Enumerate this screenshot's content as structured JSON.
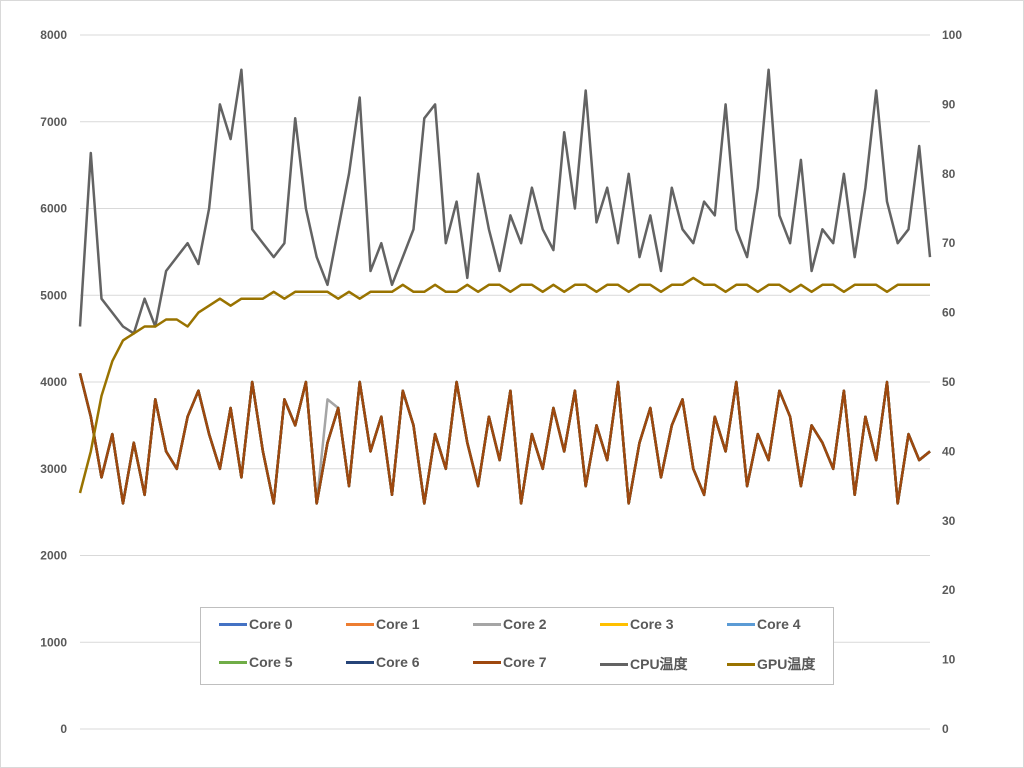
{
  "chart_data": {
    "type": "line",
    "title": "",
    "xlabel": "",
    "ylabel": "",
    "y_left": {
      "min": 0,
      "max": 8000,
      "ticks": [
        "0",
        "1000",
        "2000",
        "3000",
        "4000",
        "5000",
        "6000",
        "7000",
        "8000"
      ]
    },
    "y_right": {
      "min": 0,
      "max": 100,
      "ticks": [
        "0",
        "10",
        "20",
        "30",
        "40",
        "50",
        "60",
        "70",
        "80",
        "90",
        "100"
      ]
    },
    "grid": true,
    "legend_position": "bottom",
    "sample_count": 80,
    "series": [
      {
        "name": "Core 0",
        "axis": "left",
        "color": "#4472c4",
        "values": [
          4100,
          3600,
          2900,
          3400,
          2600,
          3300,
          2700,
          3800,
          3200,
          3000,
          3600,
          3900,
          3400,
          3000,
          3700,
          2900,
          4000,
          3200,
          2600,
          3800,
          3500,
          4000,
          2600,
          3300,
          3700,
          2800,
          4000,
          3200,
          3600,
          2700,
          3900,
          3500,
          2600,
          3400,
          3000,
          4000,
          3300,
          2800,
          3600,
          3100,
          3900,
          2600,
          3400,
          3000,
          3700,
          3200,
          3900,
          2800,
          3500,
          3100,
          4000,
          2600,
          3300,
          3700,
          2900,
          3500,
          3800,
          3000,
          2700,
          3600,
          3200,
          4000,
          2800,
          3400,
          3100,
          3900,
          3600,
          2800,
          3500,
          3300,
          3000,
          3900,
          2700,
          3600,
          3100,
          4000,
          2600,
          3400,
          3100,
          3200
        ]
      },
      {
        "name": "Core 1",
        "axis": "left",
        "color": "#ed7d31",
        "values": [
          4100,
          3600,
          2900,
          3400,
          2600,
          3300,
          2700,
          3800,
          3200,
          3000,
          3600,
          3900,
          3400,
          3000,
          3700,
          2900,
          4000,
          3200,
          2600,
          3800,
          3500,
          4000,
          2600,
          3300,
          3700,
          2800,
          4000,
          3200,
          3600,
          2700,
          3900,
          3500,
          2600,
          3400,
          3000,
          4000,
          3300,
          2800,
          3600,
          3100,
          3900,
          2600,
          3400,
          3000,
          3700,
          3200,
          3900,
          2800,
          3500,
          3100,
          4000,
          2600,
          3300,
          3700,
          2900,
          3500,
          3800,
          3000,
          2700,
          3600,
          3200,
          4000,
          2800,
          3400,
          3100,
          3900,
          3600,
          2800,
          3500,
          3300,
          3000,
          3900,
          2700,
          3600,
          3100,
          4000,
          2600,
          3400,
          3100,
          3200
        ]
      },
      {
        "name": "Core 2",
        "axis": "left",
        "color": "#a5a5a5",
        "values": [
          4100,
          3600,
          2900,
          3400,
          2600,
          3300,
          2700,
          3800,
          3200,
          3000,
          3600,
          3900,
          3400,
          3000,
          3700,
          2900,
          4000,
          3200,
          2600,
          3800,
          3500,
          4000,
          2600,
          3800,
          3700,
          2800,
          4000,
          3200,
          3600,
          2700,
          3900,
          3500,
          2600,
          3400,
          3000,
          4000,
          3300,
          2800,
          3600,
          3100,
          3900,
          2600,
          3400,
          3000,
          3700,
          3200,
          3900,
          2800,
          3500,
          3100,
          4000,
          2600,
          3300,
          3700,
          2900,
          3500,
          3800,
          3000,
          2700,
          3600,
          3200,
          4000,
          2800,
          3400,
          3100,
          3900,
          3600,
          2800,
          3500,
          3300,
          3000,
          3900,
          2700,
          3600,
          3100,
          4000,
          2600,
          3400,
          3100,
          3200
        ]
      },
      {
        "name": "Core 3",
        "axis": "left",
        "color": "#ffc000",
        "values": [
          4100,
          3600,
          2900,
          3400,
          2600,
          3300,
          2700,
          3800,
          3200,
          3000,
          3600,
          3900,
          3400,
          3000,
          3700,
          2900,
          4000,
          3200,
          2600,
          3800,
          3500,
          4000,
          2600,
          3300,
          3700,
          2800,
          4000,
          3200,
          3600,
          2700,
          3900,
          3500,
          2600,
          3400,
          3000,
          4000,
          3300,
          2800,
          3600,
          3100,
          3900,
          2600,
          3400,
          3000,
          3700,
          3200,
          3900,
          2800,
          3500,
          3100,
          4000,
          2600,
          3300,
          3700,
          2900,
          3500,
          3800,
          3000,
          2700,
          3600,
          3200,
          4000,
          2800,
          3400,
          3100,
          3900,
          3600,
          2800,
          3500,
          3300,
          3000,
          3900,
          2700,
          3600,
          3100,
          4000,
          2600,
          3400,
          3100,
          3200
        ]
      },
      {
        "name": "Core 4",
        "axis": "left",
        "color": "#5b9bd5",
        "values": [
          4100,
          3600,
          2900,
          3400,
          2600,
          3300,
          2700,
          3800,
          3200,
          3000,
          3600,
          3900,
          3400,
          3000,
          3700,
          2900,
          4000,
          3200,
          2600,
          3800,
          3500,
          4000,
          2600,
          3300,
          3700,
          2800,
          4000,
          3200,
          3600,
          2700,
          3900,
          3500,
          2600,
          3400,
          3000,
          4000,
          3300,
          2800,
          3600,
          3100,
          3900,
          2600,
          3400,
          3000,
          3700,
          3200,
          3900,
          2800,
          3500,
          3100,
          4000,
          2600,
          3300,
          3700,
          2900,
          3500,
          3800,
          3000,
          2700,
          3600,
          3200,
          4000,
          2800,
          3400,
          3100,
          3900,
          3600,
          2800,
          3500,
          3300,
          3000,
          3900,
          2700,
          3600,
          3100,
          4000,
          2600,
          3400,
          3100,
          3200
        ]
      },
      {
        "name": "Core 5",
        "axis": "left",
        "color": "#70ad47",
        "values": [
          4100,
          3600,
          2900,
          3400,
          2600,
          3300,
          2700,
          3800,
          3200,
          3000,
          3600,
          3900,
          3400,
          3000,
          3700,
          2900,
          4000,
          3200,
          2600,
          3800,
          3500,
          4000,
          2600,
          3300,
          3700,
          2800,
          4000,
          3200,
          3600,
          2700,
          3900,
          3500,
          2600,
          3400,
          3000,
          4000,
          3300,
          2800,
          3600,
          3100,
          3900,
          2600,
          3400,
          3000,
          3700,
          3200,
          3900,
          2800,
          3500,
          3100,
          4000,
          2600,
          3300,
          3700,
          2900,
          3500,
          3800,
          3000,
          2700,
          3600,
          3200,
          4000,
          2800,
          3400,
          3100,
          3900,
          3600,
          2800,
          3500,
          3300,
          3000,
          3900,
          2700,
          3600,
          3100,
          4000,
          2600,
          3400,
          3100,
          3200
        ]
      },
      {
        "name": "Core 6",
        "axis": "left",
        "color": "#264478",
        "values": [
          4100,
          3600,
          2900,
          3400,
          2600,
          3300,
          2700,
          3800,
          3200,
          3000,
          3600,
          3900,
          3400,
          3000,
          3700,
          2900,
          4000,
          3200,
          2600,
          3800,
          3500,
          4000,
          2600,
          3300,
          3700,
          2800,
          4000,
          3200,
          3600,
          2700,
          3900,
          3500,
          2600,
          3400,
          3000,
          4000,
          3300,
          2800,
          3600,
          3100,
          3900,
          2600,
          3400,
          3000,
          3700,
          3200,
          3900,
          2800,
          3500,
          3100,
          4000,
          2600,
          3300,
          3700,
          2900,
          3500,
          3800,
          3000,
          2700,
          3600,
          3200,
          4000,
          2800,
          3400,
          3100,
          3900,
          3600,
          2800,
          3500,
          3300,
          3000,
          3900,
          2700,
          3600,
          3100,
          4000,
          2600,
          3400,
          3100,
          3200
        ]
      },
      {
        "name": "Core 7",
        "axis": "left",
        "color": "#9e480e",
        "values": [
          4100,
          3600,
          2900,
          3400,
          2600,
          3300,
          2700,
          3800,
          3200,
          3000,
          3600,
          3900,
          3400,
          3000,
          3700,
          2900,
          4000,
          3200,
          2600,
          3800,
          3500,
          4000,
          2600,
          3300,
          3700,
          2800,
          4000,
          3200,
          3600,
          2700,
          3900,
          3500,
          2600,
          3400,
          3000,
          4000,
          3300,
          2800,
          3600,
          3100,
          3900,
          2600,
          3400,
          3000,
          3700,
          3200,
          3900,
          2800,
          3500,
          3100,
          4000,
          2600,
          3300,
          3700,
          2900,
          3500,
          3800,
          3000,
          2700,
          3600,
          3200,
          4000,
          2800,
          3400,
          3100,
          3900,
          3600,
          2800,
          3500,
          3300,
          3000,
          3900,
          2700,
          3600,
          3100,
          4000,
          2600,
          3400,
          3100,
          3200
        ]
      },
      {
        "name": "CPU温度",
        "axis": "right",
        "color": "#636363",
        "values": [
          58,
          83,
          62,
          60,
          58,
          57,
          62,
          58,
          66,
          68,
          70,
          67,
          75,
          90,
          85,
          95,
          72,
          70,
          68,
          70,
          88,
          75,
          68,
          64,
          72,
          80,
          91,
          66,
          70,
          64,
          68,
          72,
          88,
          90,
          70,
          76,
          65,
          80,
          72,
          66,
          74,
          70,
          78,
          72,
          69,
          86,
          75,
          92,
          73,
          78,
          70,
          80,
          68,
          74,
          66,
          78,
          72,
          70,
          76,
          74,
          90,
          72,
          68,
          78,
          95,
          74,
          70,
          82,
          66,
          72,
          70,
          80,
          68,
          78,
          92,
          76,
          70,
          72,
          84,
          68
        ]
      },
      {
        "name": "GPU温度",
        "axis": "right",
        "color": "#997300",
        "values": [
          34,
          40,
          48,
          53,
          56,
          57,
          58,
          58,
          59,
          59,
          58,
          60,
          61,
          62,
          61,
          62,
          62,
          62,
          63,
          62,
          63,
          63,
          63,
          63,
          62,
          63,
          62,
          63,
          63,
          63,
          64,
          63,
          63,
          64,
          63,
          63,
          64,
          63,
          64,
          64,
          63,
          64,
          64,
          63,
          64,
          63,
          64,
          64,
          63,
          64,
          64,
          63,
          64,
          64,
          63,
          64,
          64,
          65,
          64,
          64,
          63,
          64,
          64,
          63,
          64,
          64,
          63,
          64,
          63,
          64,
          64,
          63,
          64,
          64,
          64,
          63,
          64,
          64,
          64,
          64
        ]
      }
    ]
  }
}
